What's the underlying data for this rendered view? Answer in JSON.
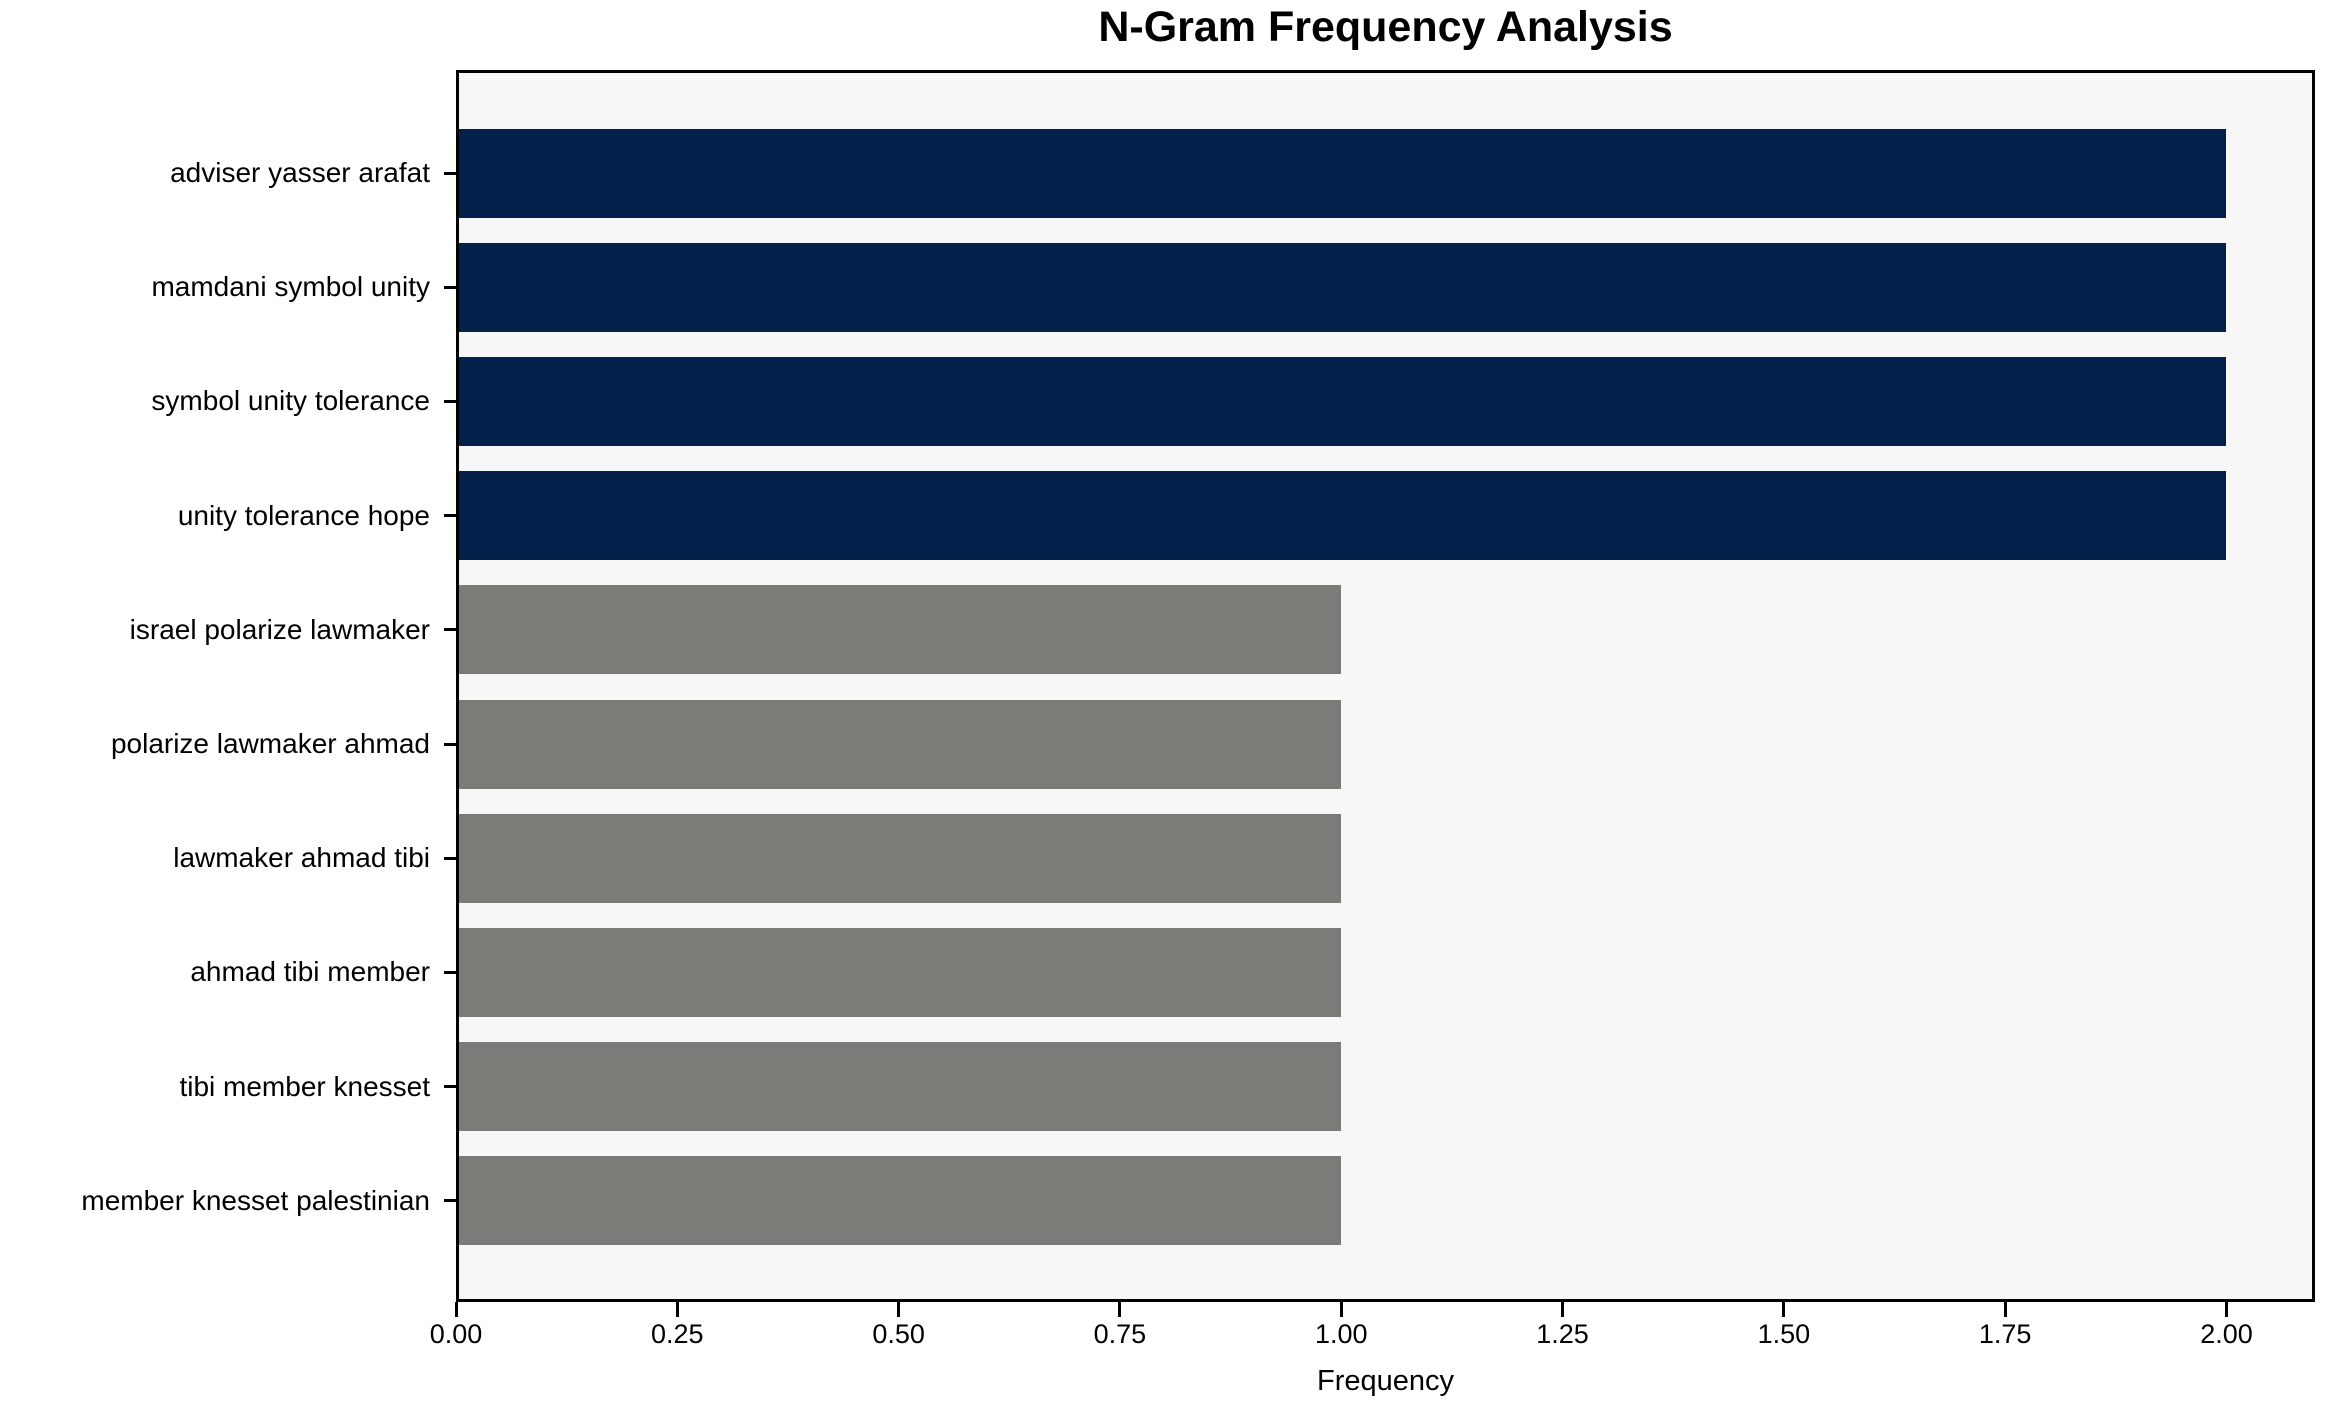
{
  "chart_data": {
    "type": "bar",
    "orientation": "horizontal",
    "title": "N-Gram Frequency Analysis",
    "xlabel": "Frequency",
    "ylabel": "",
    "xlim": [
      0,
      2.1
    ],
    "xtick_values": [
      0,
      0.25,
      0.5,
      0.75,
      1.0,
      1.25,
      1.5,
      1.75,
      2.0
    ],
    "xtick_labels": [
      "0.00",
      "0.25",
      "0.50",
      "0.75",
      "1.00",
      "1.25",
      "1.50",
      "1.75",
      "2.00"
    ],
    "grid": false,
    "legend": false,
    "categories": [
      "adviser yasser arafat",
      "mamdani symbol unity",
      "symbol unity tolerance",
      "unity tolerance hope",
      "israel polarize lawmaker",
      "polarize lawmaker ahmad",
      "lawmaker ahmad tibi",
      "ahmad tibi member",
      "tibi member knesset",
      "member knesset palestinian"
    ],
    "series": [
      {
        "name": "Frequency",
        "values": [
          2,
          2,
          2,
          2,
          1,
          1,
          1,
          1,
          1,
          1
        ]
      }
    ],
    "bar_colors": [
      "#03214a",
      "#03214a",
      "#03214a",
      "#03214a",
      "#7b7b78",
      "#7b7b78",
      "#7b7b78",
      "#7b7b78",
      "#7b7b78",
      "#7b7b78"
    ],
    "colors": {
      "high_frequency_bar": "#03214a",
      "low_frequency_bar": "#7b7b78",
      "plot_background": "#f7f7f7",
      "figure_background": "#ffffff",
      "spine": "#000000",
      "text": "#000000"
    }
  }
}
